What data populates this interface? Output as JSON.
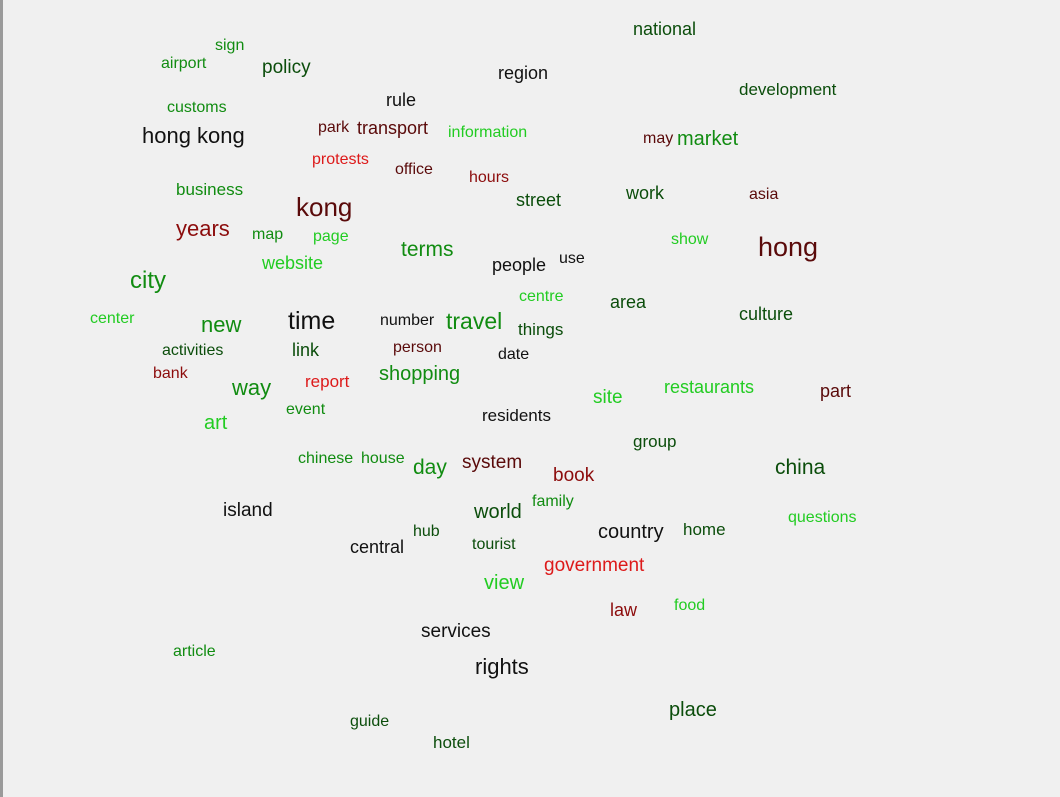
{
  "colors": {
    "black": "#111111",
    "dark_green": "#0b4d0b",
    "green": "#118c11",
    "bright_green": "#22cc22",
    "dark_red": "#5a0a0a",
    "maroon": "#8c0c0c",
    "red": "#dd1a1a"
  },
  "words": [
    {
      "text": "national",
      "color": "dark_green"
    },
    {
      "text": "sign",
      "color": "green"
    },
    {
      "text": "airport",
      "color": "green"
    },
    {
      "text": "policy",
      "color": "dark_green"
    },
    {
      "text": "region",
      "color": "black"
    },
    {
      "text": "development",
      "color": "dark_green"
    },
    {
      "text": "rule",
      "color": "black"
    },
    {
      "text": "customs",
      "color": "green"
    },
    {
      "text": "hong kong",
      "color": "black"
    },
    {
      "text": "park",
      "color": "dark_red"
    },
    {
      "text": "transport",
      "color": "dark_red"
    },
    {
      "text": "information",
      "color": "bright_green"
    },
    {
      "text": "may",
      "color": "dark_red"
    },
    {
      "text": "market",
      "color": "green"
    },
    {
      "text": "protests",
      "color": "red"
    },
    {
      "text": "office",
      "color": "dark_red"
    },
    {
      "text": "hours",
      "color": "maroon"
    },
    {
      "text": "business",
      "color": "green"
    },
    {
      "text": "street",
      "color": "dark_green"
    },
    {
      "text": "work",
      "color": "dark_green"
    },
    {
      "text": "asia",
      "color": "dark_red"
    },
    {
      "text": "kong",
      "color": "dark_red"
    },
    {
      "text": "years",
      "color": "maroon"
    },
    {
      "text": "map",
      "color": "green"
    },
    {
      "text": "page",
      "color": "bright_green"
    },
    {
      "text": "terms",
      "color": "green"
    },
    {
      "text": "show",
      "color": "bright_green"
    },
    {
      "text": "hong",
      "color": "dark_red"
    },
    {
      "text": "use",
      "color": "black"
    },
    {
      "text": "people",
      "color": "black"
    },
    {
      "text": "website",
      "color": "bright_green"
    },
    {
      "text": "city",
      "color": "green"
    },
    {
      "text": "centre",
      "color": "bright_green"
    },
    {
      "text": "area",
      "color": "dark_green"
    },
    {
      "text": "culture",
      "color": "dark_green"
    },
    {
      "text": "center",
      "color": "bright_green"
    },
    {
      "text": "new",
      "color": "green"
    },
    {
      "text": "time",
      "color": "black"
    },
    {
      "text": "number",
      "color": "black"
    },
    {
      "text": "travel",
      "color": "green"
    },
    {
      "text": "things",
      "color": "dark_green"
    },
    {
      "text": "activities",
      "color": "dark_green"
    },
    {
      "text": "link",
      "color": "dark_green"
    },
    {
      "text": "person",
      "color": "dark_red"
    },
    {
      "text": "date",
      "color": "black"
    },
    {
      "text": "bank",
      "color": "maroon"
    },
    {
      "text": "shopping",
      "color": "green"
    },
    {
      "text": "way",
      "color": "green"
    },
    {
      "text": "report",
      "color": "red"
    },
    {
      "text": "restaurants",
      "color": "bright_green"
    },
    {
      "text": "part",
      "color": "dark_red"
    },
    {
      "text": "site",
      "color": "bright_green"
    },
    {
      "text": "event",
      "color": "green"
    },
    {
      "text": "residents",
      "color": "black"
    },
    {
      "text": "art",
      "color": "bright_green"
    },
    {
      "text": "group",
      "color": "dark_green"
    },
    {
      "text": "chinese",
      "color": "green"
    },
    {
      "text": "house",
      "color": "green"
    },
    {
      "text": "day",
      "color": "green"
    },
    {
      "text": "system",
      "color": "dark_red"
    },
    {
      "text": "china",
      "color": "dark_green"
    },
    {
      "text": "book",
      "color": "maroon"
    },
    {
      "text": "family",
      "color": "green"
    },
    {
      "text": "island",
      "color": "black"
    },
    {
      "text": "world",
      "color": "dark_green"
    },
    {
      "text": "questions",
      "color": "bright_green"
    },
    {
      "text": "country",
      "color": "black"
    },
    {
      "text": "home",
      "color": "dark_green"
    },
    {
      "text": "hub",
      "color": "dark_green"
    },
    {
      "text": "central",
      "color": "black"
    },
    {
      "text": "tourist",
      "color": "dark_green"
    },
    {
      "text": "government",
      "color": "red"
    },
    {
      "text": "view",
      "color": "bright_green"
    },
    {
      "text": "law",
      "color": "maroon"
    },
    {
      "text": "food",
      "color": "bright_green"
    },
    {
      "text": "services",
      "color": "black"
    },
    {
      "text": "article",
      "color": "green"
    },
    {
      "text": "rights",
      "color": "black"
    },
    {
      "text": "place",
      "color": "dark_green"
    },
    {
      "text": "guide",
      "color": "dark_green"
    },
    {
      "text": "hotel",
      "color": "dark_green"
    }
  ]
}
